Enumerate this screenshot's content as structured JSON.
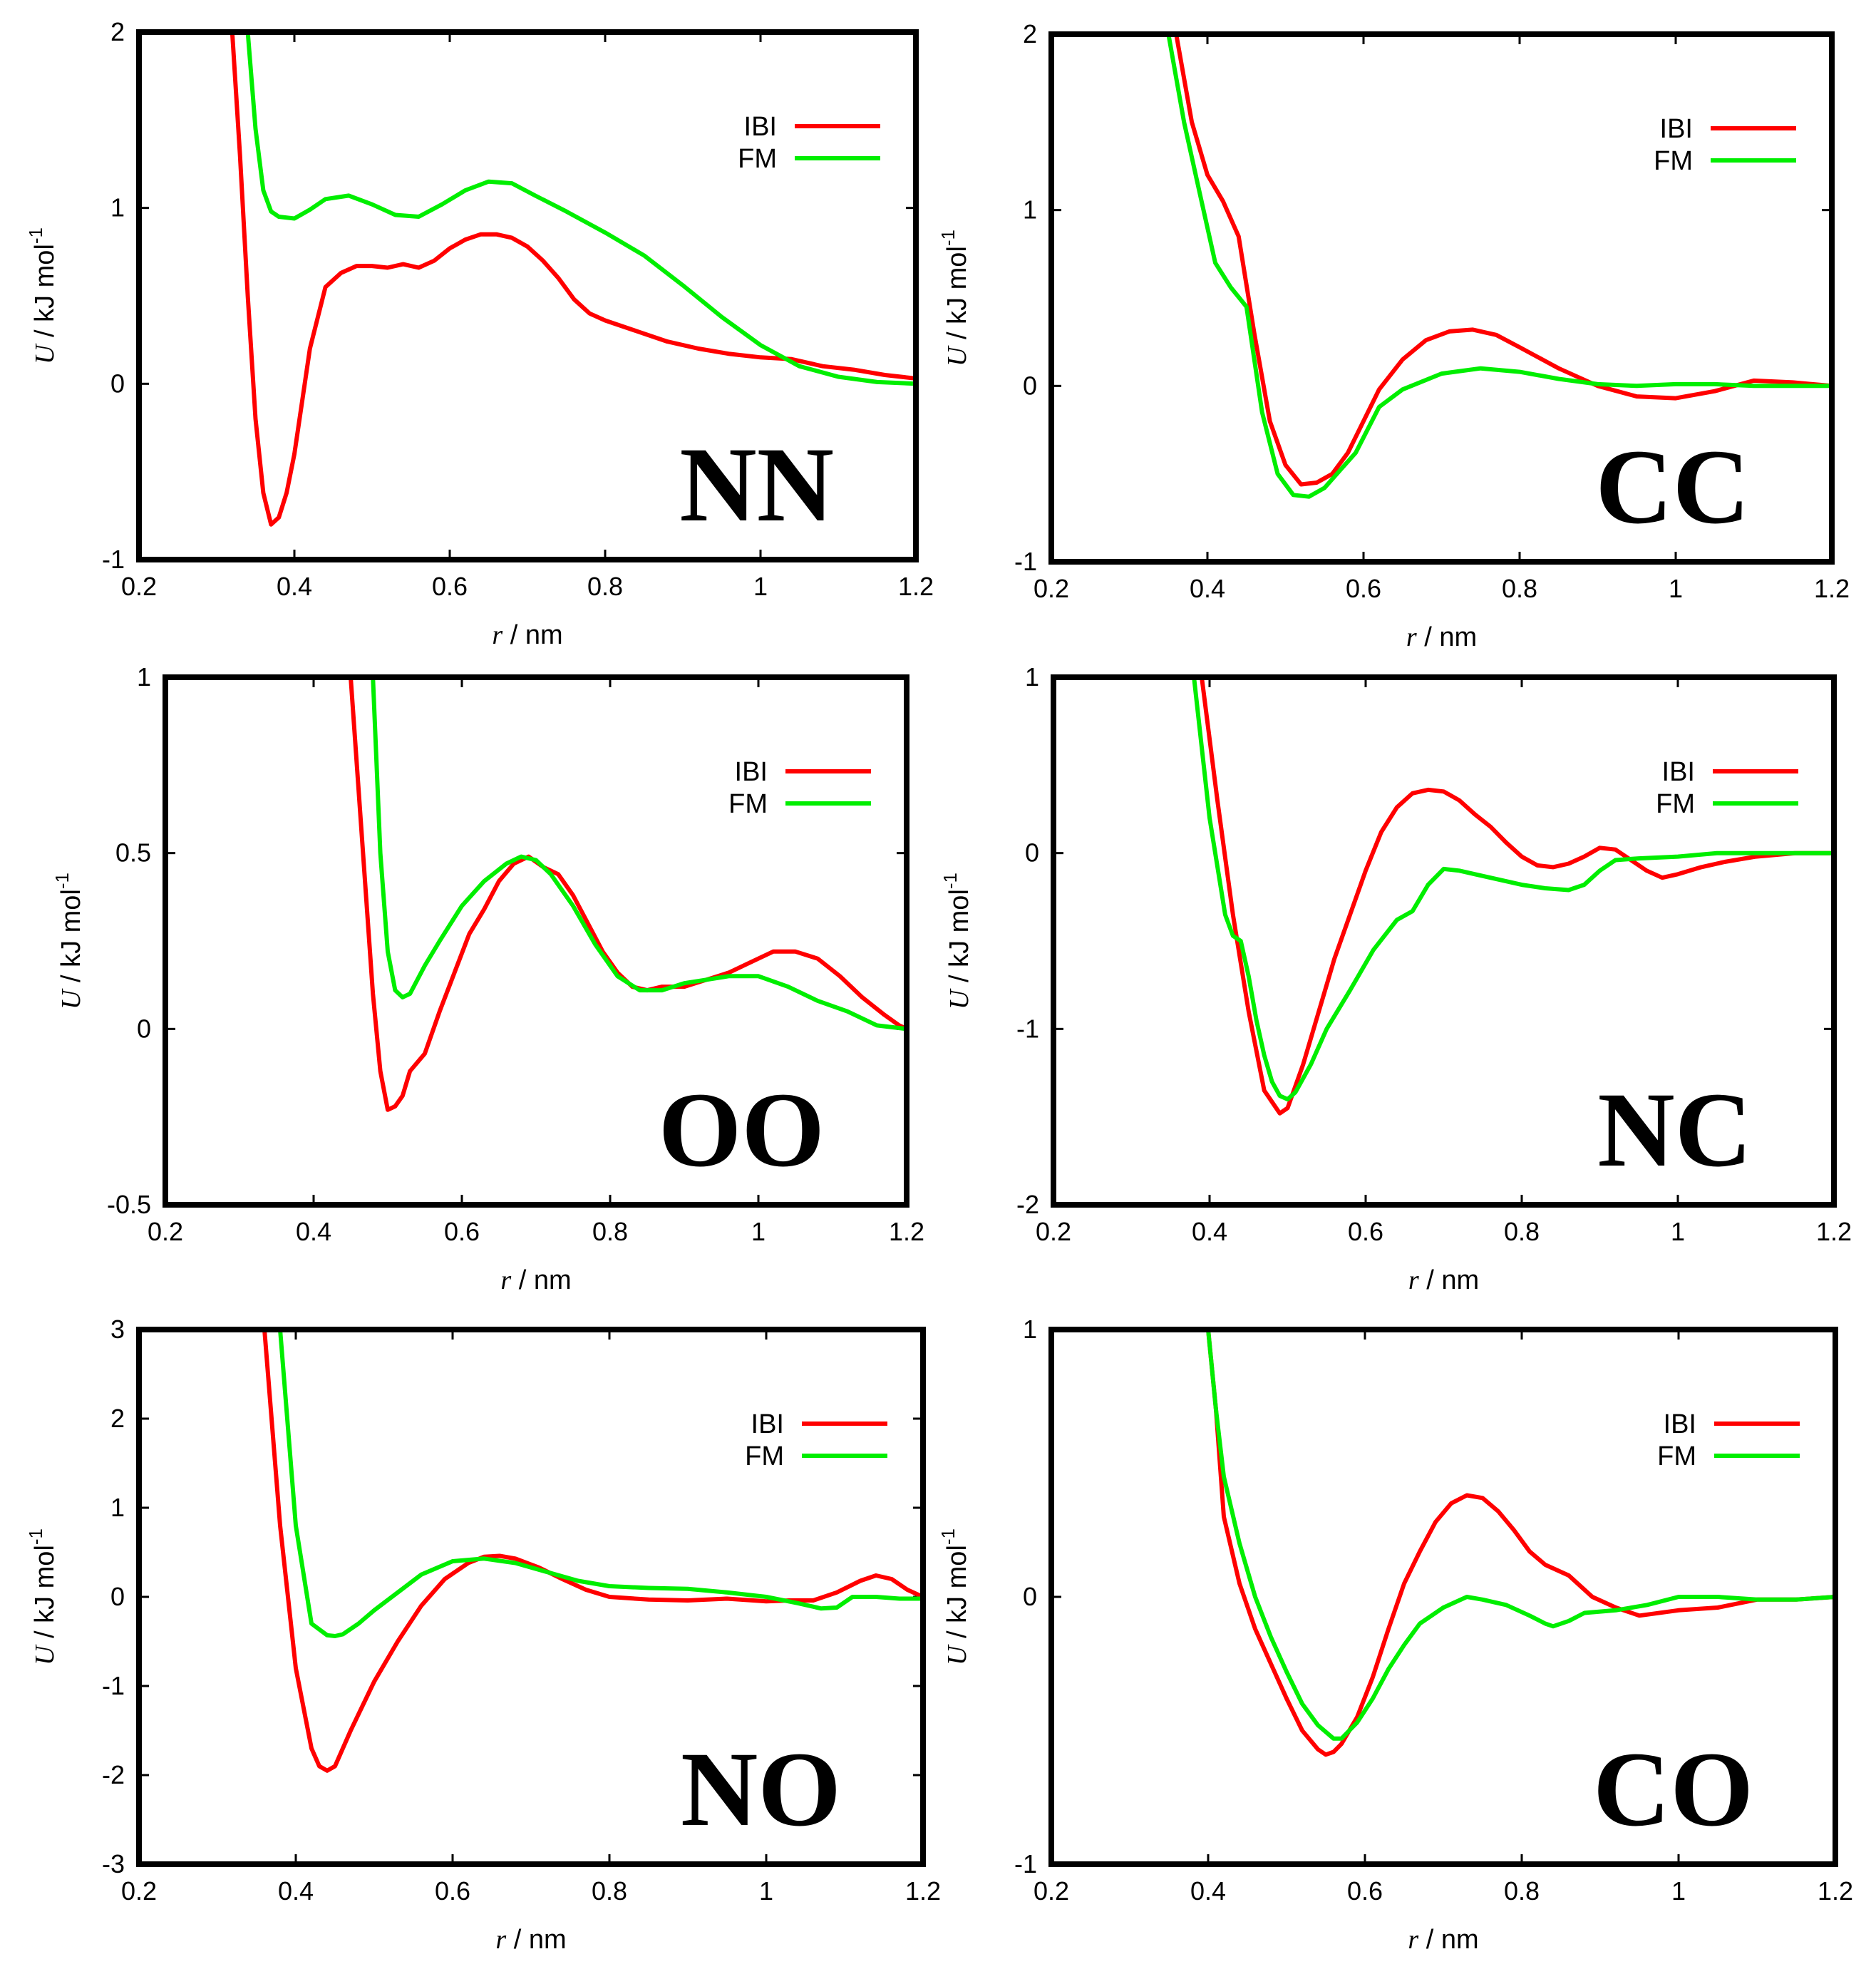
{
  "colors": {
    "IBI": "#ff0000",
    "FM": "#00ee00"
  },
  "chart_data": [
    {
      "type": "line",
      "title": "NN",
      "xlabel_var": "r",
      "xlabel_unit": " / nm",
      "ylabel_var": "U",
      "ylabel_unit": " / kJ mol",
      "ylabel_sup": "-1",
      "xlim": [
        0.2,
        1.2
      ],
      "ylim": [
        -1,
        2
      ],
      "xticks": [
        0.2,
        0.4,
        0.6,
        0.8,
        1,
        1.2
      ],
      "yticks": [
        -1,
        0,
        1,
        2
      ],
      "legend_position": "top-right",
      "series": [
        {
          "name": "IBI",
          "color": "#ff0000",
          "x": [
            0.32,
            0.33,
            0.34,
            0.35,
            0.36,
            0.37,
            0.38,
            0.39,
            0.4,
            0.42,
            0.44,
            0.46,
            0.48,
            0.5,
            0.52,
            0.54,
            0.56,
            0.58,
            0.6,
            0.62,
            0.64,
            0.66,
            0.68,
            0.7,
            0.72,
            0.74,
            0.76,
            0.78,
            0.8,
            0.84,
            0.88,
            0.92,
            0.96,
            1.0,
            1.04,
            1.08,
            1.12,
            1.16,
            1.2
          ],
          "y": [
            2.0,
            1.3,
            0.5,
            -0.2,
            -0.62,
            -0.8,
            -0.76,
            -0.62,
            -0.4,
            0.2,
            0.55,
            0.63,
            0.67,
            0.67,
            0.66,
            0.68,
            0.66,
            0.7,
            0.77,
            0.82,
            0.85,
            0.85,
            0.83,
            0.78,
            0.7,
            0.6,
            0.48,
            0.4,
            0.36,
            0.3,
            0.24,
            0.2,
            0.17,
            0.15,
            0.14,
            0.1,
            0.08,
            0.05,
            0.03
          ]
        },
        {
          "name": "FM",
          "color": "#00ee00",
          "x": [
            0.34,
            0.35,
            0.36,
            0.37,
            0.38,
            0.4,
            0.42,
            0.44,
            0.47,
            0.5,
            0.53,
            0.56,
            0.59,
            0.62,
            0.65,
            0.68,
            0.71,
            0.75,
            0.8,
            0.85,
            0.9,
            0.95,
            1.0,
            1.05,
            1.1,
            1.15,
            1.2
          ],
          "y": [
            2.0,
            1.45,
            1.1,
            0.98,
            0.95,
            0.94,
            0.99,
            1.05,
            1.07,
            1.02,
            0.96,
            0.95,
            1.02,
            1.1,
            1.15,
            1.14,
            1.07,
            0.98,
            0.86,
            0.73,
            0.56,
            0.38,
            0.22,
            0.1,
            0.04,
            0.01,
            0.0
          ]
        }
      ]
    },
    {
      "type": "line",
      "title": "CC",
      "xlabel_var": "r",
      "xlabel_unit": " / nm",
      "ylabel_var": "U",
      "ylabel_unit": " / kJ mol",
      "ylabel_sup": "-1",
      "xlim": [
        0.2,
        1.2
      ],
      "ylim": [
        -1,
        2
      ],
      "xticks": [
        0.2,
        0.4,
        0.6,
        0.8,
        1,
        1.2
      ],
      "yticks": [
        -1,
        0,
        1,
        2
      ],
      "legend_position": "top-right",
      "series": [
        {
          "name": "IBI",
          "color": "#ff0000",
          "x": [
            0.36,
            0.38,
            0.4,
            0.42,
            0.44,
            0.46,
            0.48,
            0.5,
            0.52,
            0.54,
            0.56,
            0.58,
            0.6,
            0.62,
            0.65,
            0.68,
            0.71,
            0.74,
            0.77,
            0.8,
            0.85,
            0.9,
            0.95,
            1.0,
            1.05,
            1.1,
            1.15,
            1.2
          ],
          "y": [
            2.0,
            1.5,
            1.2,
            1.05,
            0.85,
            0.3,
            -0.2,
            -0.45,
            -0.56,
            -0.55,
            -0.5,
            -0.38,
            -0.2,
            -0.02,
            0.15,
            0.26,
            0.31,
            0.32,
            0.29,
            0.22,
            0.1,
            0.0,
            -0.06,
            -0.07,
            -0.03,
            0.03,
            0.02,
            0.0
          ]
        },
        {
          "name": "FM",
          "color": "#00ee00",
          "x": [
            0.35,
            0.37,
            0.39,
            0.41,
            0.43,
            0.45,
            0.47,
            0.49,
            0.51,
            0.53,
            0.55,
            0.57,
            0.59,
            0.62,
            0.65,
            0.7,
            0.75,
            0.8,
            0.85,
            0.9,
            0.95,
            1.0,
            1.05,
            1.1,
            1.15,
            1.2
          ],
          "y": [
            2.0,
            1.5,
            1.1,
            0.7,
            0.56,
            0.45,
            -0.15,
            -0.5,
            -0.62,
            -0.63,
            -0.58,
            -0.48,
            -0.38,
            -0.12,
            -0.02,
            0.07,
            0.1,
            0.08,
            0.04,
            0.01,
            0.0,
            0.01,
            0.01,
            0.0,
            0.0,
            0.0
          ]
        }
      ]
    },
    {
      "type": "line",
      "title": "OO",
      "xlabel_var": "r",
      "xlabel_unit": " / nm",
      "ylabel_var": "U",
      "ylabel_unit": " / kJ mol",
      "ylabel_sup": "-1",
      "xlim": [
        0.2,
        1.2
      ],
      "ylim": [
        -0.5,
        1
      ],
      "xticks": [
        0.2,
        0.4,
        0.6,
        0.8,
        1,
        1.2
      ],
      "yticks": [
        -0.5,
        0,
        0.5,
        1
      ],
      "legend_position": "top-right",
      "series": [
        {
          "name": "IBI",
          "color": "#ff0000",
          "x": [
            0.45,
            0.46,
            0.47,
            0.48,
            0.49,
            0.5,
            0.51,
            0.52,
            0.53,
            0.55,
            0.57,
            0.59,
            0.61,
            0.63,
            0.65,
            0.67,
            0.69,
            0.71,
            0.73,
            0.75,
            0.77,
            0.79,
            0.81,
            0.83,
            0.85,
            0.87,
            0.9,
            0.93,
            0.96,
            0.99,
            1.02,
            1.05,
            1.08,
            1.11,
            1.14,
            1.17,
            1.19,
            1.2
          ],
          "y": [
            1.0,
            0.7,
            0.4,
            0.1,
            -0.12,
            -0.23,
            -0.22,
            -0.19,
            -0.12,
            -0.07,
            0.05,
            0.16,
            0.27,
            0.34,
            0.42,
            0.47,
            0.49,
            0.46,
            0.44,
            0.38,
            0.3,
            0.22,
            0.16,
            0.12,
            0.11,
            0.12,
            0.12,
            0.14,
            0.16,
            0.19,
            0.22,
            0.22,
            0.2,
            0.15,
            0.09,
            0.04,
            0.01,
            0.0
          ]
        },
        {
          "name": "FM",
          "color": "#00ee00",
          "x": [
            0.48,
            0.49,
            0.5,
            0.51,
            0.52,
            0.53,
            0.55,
            0.57,
            0.6,
            0.63,
            0.66,
            0.68,
            0.7,
            0.72,
            0.75,
            0.78,
            0.81,
            0.84,
            0.87,
            0.9,
            0.93,
            0.96,
            1.0,
            1.04,
            1.08,
            1.12,
            1.16,
            1.2
          ],
          "y": [
            1.0,
            0.5,
            0.22,
            0.11,
            0.09,
            0.1,
            0.18,
            0.25,
            0.35,
            0.42,
            0.47,
            0.49,
            0.48,
            0.44,
            0.35,
            0.24,
            0.15,
            0.11,
            0.11,
            0.13,
            0.14,
            0.15,
            0.15,
            0.12,
            0.08,
            0.05,
            0.01,
            0.0
          ]
        }
      ]
    },
    {
      "type": "line",
      "title": "NC",
      "xlabel_var": "r",
      "xlabel_unit": " / nm",
      "ylabel_var": "U",
      "ylabel_unit": " / kJ mol",
      "ylabel_sup": "-1",
      "xlim": [
        0.2,
        1.2
      ],
      "ylim": [
        -2,
        1
      ],
      "xticks": [
        0.2,
        0.4,
        0.6,
        0.8,
        1,
        1.2
      ],
      "yticks": [
        -2,
        -1,
        0,
        1
      ],
      "legend_position": "top-right",
      "series": [
        {
          "name": "IBI",
          "color": "#ff0000",
          "x": [
            0.39,
            0.41,
            0.43,
            0.45,
            0.47,
            0.49,
            0.5,
            0.52,
            0.54,
            0.56,
            0.58,
            0.6,
            0.62,
            0.64,
            0.66,
            0.68,
            0.7,
            0.72,
            0.74,
            0.76,
            0.78,
            0.8,
            0.82,
            0.84,
            0.86,
            0.88,
            0.9,
            0.92,
            0.94,
            0.96,
            0.98,
            1.0,
            1.03,
            1.06,
            1.1,
            1.15,
            1.2
          ],
          "y": [
            1.0,
            0.3,
            -0.35,
            -0.9,
            -1.35,
            -1.48,
            -1.45,
            -1.2,
            -0.9,
            -0.6,
            -0.35,
            -0.1,
            0.12,
            0.26,
            0.34,
            0.36,
            0.35,
            0.3,
            0.22,
            0.15,
            0.06,
            -0.02,
            -0.07,
            -0.08,
            -0.06,
            -0.02,
            0.03,
            0.02,
            -0.04,
            -0.1,
            -0.14,
            -0.12,
            -0.08,
            -0.05,
            -0.02,
            0.0,
            0.0
          ]
        },
        {
          "name": "FM",
          "color": "#00ee00",
          "x": [
            0.38,
            0.4,
            0.42,
            0.43,
            0.44,
            0.45,
            0.46,
            0.47,
            0.48,
            0.49,
            0.5,
            0.51,
            0.53,
            0.55,
            0.58,
            0.61,
            0.64,
            0.66,
            0.68,
            0.7,
            0.72,
            0.74,
            0.77,
            0.8,
            0.83,
            0.86,
            0.88,
            0.9,
            0.92,
            0.95,
            1.0,
            1.05,
            1.1,
            1.15,
            1.2
          ],
          "y": [
            1.0,
            0.2,
            -0.35,
            -0.47,
            -0.5,
            -0.7,
            -0.95,
            -1.15,
            -1.3,
            -1.38,
            -1.4,
            -1.36,
            -1.2,
            -1.0,
            -0.78,
            -0.55,
            -0.38,
            -0.33,
            -0.18,
            -0.09,
            -0.1,
            -0.12,
            -0.15,
            -0.18,
            -0.2,
            -0.21,
            -0.18,
            -0.1,
            -0.04,
            -0.03,
            -0.02,
            0.0,
            0.0,
            0.0,
            0.0
          ]
        }
      ]
    },
    {
      "type": "line",
      "title": "NO",
      "xlabel_var": "r",
      "xlabel_unit": " / nm",
      "ylabel_var": "U",
      "ylabel_unit": " / kJ mol",
      "ylabel_sup": "-1",
      "xlim": [
        0.2,
        1.2
      ],
      "ylim": [
        -3,
        3
      ],
      "xticks": [
        0.2,
        0.4,
        0.6,
        0.8,
        1,
        1.2
      ],
      "yticks": [
        -3,
        -2,
        -1,
        0,
        1,
        2,
        3
      ],
      "legend_position": "top-right",
      "series": [
        {
          "name": "IBI",
          "color": "#ff0000",
          "x": [
            0.36,
            0.38,
            0.4,
            0.42,
            0.43,
            0.44,
            0.45,
            0.47,
            0.5,
            0.53,
            0.56,
            0.59,
            0.62,
            0.64,
            0.66,
            0.68,
            0.71,
            0.74,
            0.77,
            0.8,
            0.85,
            0.9,
            0.95,
            1.0,
            1.03,
            1.06,
            1.09,
            1.12,
            1.14,
            1.16,
            1.18,
            1.2
          ],
          "y": [
            3.0,
            0.8,
            -0.8,
            -1.7,
            -1.9,
            -1.95,
            -1.9,
            -1.5,
            -0.95,
            -0.5,
            -0.1,
            0.2,
            0.38,
            0.45,
            0.46,
            0.43,
            0.33,
            0.2,
            0.08,
            0.0,
            -0.03,
            -0.04,
            -0.02,
            -0.05,
            -0.04,
            -0.04,
            0.05,
            0.18,
            0.24,
            0.2,
            0.08,
            0.0
          ]
        },
        {
          "name": "FM",
          "color": "#00ee00",
          "x": [
            0.38,
            0.4,
            0.42,
            0.44,
            0.45,
            0.46,
            0.48,
            0.5,
            0.53,
            0.56,
            0.6,
            0.64,
            0.68,
            0.72,
            0.76,
            0.8,
            0.85,
            0.9,
            0.95,
            1.0,
            1.04,
            1.07,
            1.09,
            1.11,
            1.14,
            1.17,
            1.2
          ],
          "y": [
            3.0,
            0.8,
            -0.3,
            -0.43,
            -0.44,
            -0.42,
            -0.3,
            -0.15,
            0.05,
            0.25,
            0.4,
            0.43,
            0.38,
            0.28,
            0.18,
            0.12,
            0.1,
            0.09,
            0.05,
            0.0,
            -0.07,
            -0.13,
            -0.12,
            0.0,
            0.0,
            -0.02,
            -0.02
          ]
        }
      ]
    },
    {
      "type": "line",
      "title": "CO",
      "xlabel_var": "r",
      "xlabel_unit": " / nm",
      "ylabel_var": "U",
      "ylabel_unit": " / kJ mol",
      "ylabel_sup": "-1",
      "xlim": [
        0.2,
        1.2
      ],
      "ylim": [
        -1,
        1
      ],
      "xticks": [
        0.2,
        0.4,
        0.6,
        0.8,
        1,
        1.2
      ],
      "yticks": [
        -1,
        0,
        1
      ],
      "legend_position": "top-right",
      "series": [
        {
          "name": "IBI",
          "color": "#ff0000",
          "x": [
            0.4,
            0.41,
            0.42,
            0.44,
            0.46,
            0.48,
            0.5,
            0.52,
            0.54,
            0.55,
            0.56,
            0.57,
            0.59,
            0.61,
            0.63,
            0.65,
            0.67,
            0.69,
            0.71,
            0.73,
            0.75,
            0.77,
            0.79,
            0.81,
            0.83,
            0.86,
            0.89,
            0.92,
            0.95,
            1.0,
            1.05,
            1.1,
            1.15,
            1.2
          ],
          "y": [
            1.0,
            0.7,
            0.3,
            0.05,
            -0.12,
            -0.25,
            -0.38,
            -0.5,
            -0.57,
            -0.59,
            -0.58,
            -0.55,
            -0.45,
            -0.3,
            -0.12,
            0.05,
            0.17,
            0.28,
            0.35,
            0.38,
            0.37,
            0.32,
            0.25,
            0.17,
            0.12,
            0.08,
            0.0,
            -0.04,
            -0.07,
            -0.05,
            -0.04,
            -0.01,
            -0.01,
            0.0
          ]
        },
        {
          "name": "FM",
          "color": "#00ee00",
          "x": [
            0.4,
            0.41,
            0.42,
            0.44,
            0.46,
            0.48,
            0.5,
            0.52,
            0.54,
            0.56,
            0.57,
            0.59,
            0.61,
            0.63,
            0.65,
            0.67,
            0.7,
            0.73,
            0.75,
            0.78,
            0.81,
            0.83,
            0.84,
            0.86,
            0.88,
            0.92,
            0.96,
            1.0,
            1.05,
            1.1,
            1.15,
            1.2
          ],
          "y": [
            1.0,
            0.7,
            0.45,
            0.2,
            0.0,
            -0.15,
            -0.28,
            -0.4,
            -0.48,
            -0.53,
            -0.53,
            -0.47,
            -0.38,
            -0.27,
            -0.18,
            -0.1,
            -0.04,
            0.0,
            -0.01,
            -0.03,
            -0.07,
            -0.1,
            -0.11,
            -0.09,
            -0.06,
            -0.05,
            -0.03,
            0.0,
            0.0,
            -0.01,
            -0.01,
            0.0
          ]
        }
      ]
    }
  ]
}
